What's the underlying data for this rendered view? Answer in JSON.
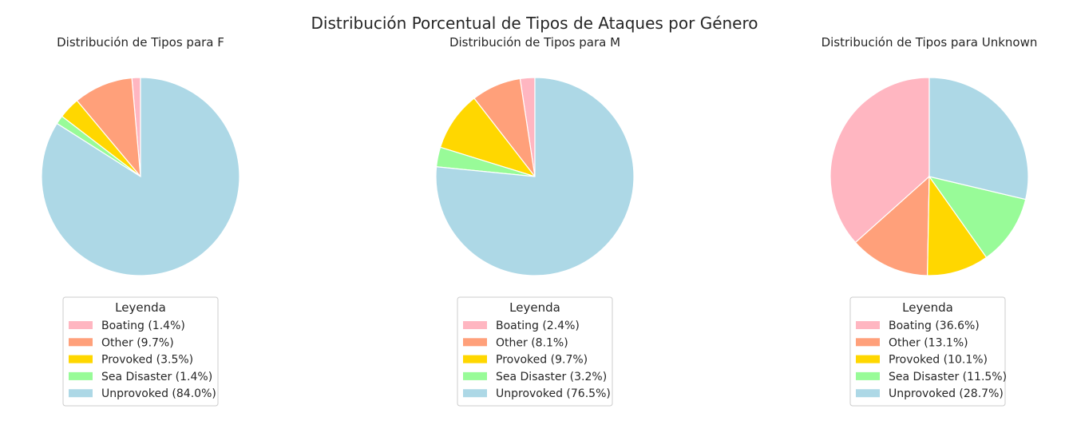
{
  "figure": {
    "title": "Distribución Porcentual de Tipos de Ataques por Género"
  },
  "chart_data": [
    {
      "type": "pie",
      "title": "Distribución de Tipos para F",
      "legend_title": "Leyenda",
      "legend_position": "below",
      "start_angle_deg": 90,
      "direction": "counterclockwise",
      "slices": [
        {
          "label": "Boating",
          "value": 1.4,
          "legend": "Boating (1.4%)",
          "color": "#FFB6C1"
        },
        {
          "label": "Other",
          "value": 9.7,
          "legend": "Other (9.7%)",
          "color": "#FFA07A"
        },
        {
          "label": "Provoked",
          "value": 3.5,
          "legend": "Provoked (3.5%)",
          "color": "#FFD700"
        },
        {
          "label": "Sea Disaster",
          "value": 1.4,
          "legend": "Sea Disaster (1.4%)",
          "color": "#98FB98"
        },
        {
          "label": "Unprovoked",
          "value": 84.0,
          "legend": "Unprovoked (84.0%)",
          "color": "#ADD8E6"
        }
      ]
    },
    {
      "type": "pie",
      "title": "Distribución de Tipos para M",
      "legend_title": "Leyenda",
      "legend_position": "below",
      "start_angle_deg": 90,
      "direction": "counterclockwise",
      "slices": [
        {
          "label": "Boating",
          "value": 2.4,
          "legend": "Boating (2.4%)",
          "color": "#FFB6C1"
        },
        {
          "label": "Other",
          "value": 8.1,
          "legend": "Other (8.1%)",
          "color": "#FFA07A"
        },
        {
          "label": "Provoked",
          "value": 9.7,
          "legend": "Provoked (9.7%)",
          "color": "#FFD700"
        },
        {
          "label": "Sea Disaster",
          "value": 3.2,
          "legend": "Sea Disaster (3.2%)",
          "color": "#98FB98"
        },
        {
          "label": "Unprovoked",
          "value": 76.5,
          "legend": "Unprovoked (76.5%)",
          "color": "#ADD8E6"
        }
      ]
    },
    {
      "type": "pie",
      "title": "Distribución de Tipos para Unknown",
      "legend_title": "Leyenda",
      "legend_position": "below",
      "start_angle_deg": 90,
      "direction": "counterclockwise",
      "slices": [
        {
          "label": "Boating",
          "value": 36.6,
          "legend": "Boating (36.6%)",
          "color": "#FFB6C1"
        },
        {
          "label": "Other",
          "value": 13.1,
          "legend": "Other (13.1%)",
          "color": "#FFA07A"
        },
        {
          "label": "Provoked",
          "value": 10.1,
          "legend": "Provoked (10.1%)",
          "color": "#FFD700"
        },
        {
          "label": "Sea Disaster",
          "value": 11.5,
          "legend": "Sea Disaster (11.5%)",
          "color": "#98FB98"
        },
        {
          "label": "Unprovoked",
          "value": 28.7,
          "legend": "Unprovoked (28.7%)",
          "color": "#ADD8E6"
        }
      ]
    }
  ]
}
